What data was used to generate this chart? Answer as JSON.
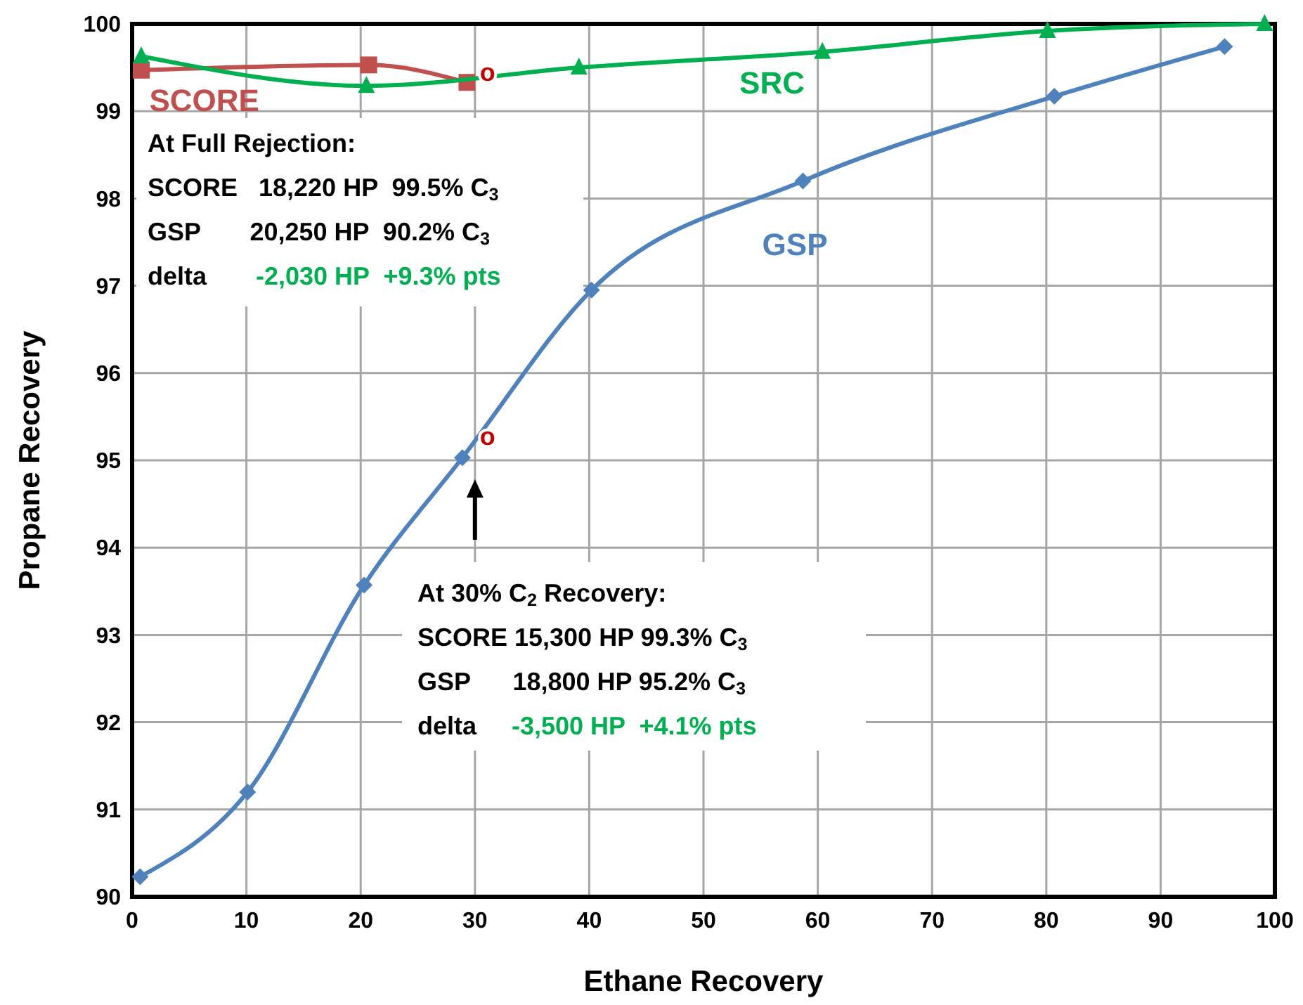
{
  "chart_data": {
    "type": "line",
    "xlabel": "Ethane Recovery",
    "ylabel": "Propane Recovery",
    "xlim": [
      0,
      100
    ],
    "xticks": [
      0,
      10,
      20,
      30,
      40,
      50,
      60,
      70,
      80,
      90,
      100
    ],
    "ylim": [
      90,
      100
    ],
    "yticks": [
      90,
      91,
      92,
      93,
      94,
      95,
      96,
      97,
      98,
      99,
      100
    ],
    "grid": true,
    "line_style": "solid",
    "series": [
      {
        "name": "SCORE",
        "color": "#c0504d",
        "marker": "square",
        "x": [
          0.8,
          20.7,
          29.3
        ],
        "values": [
          99.47,
          99.53,
          99.33
        ]
      },
      {
        "name": "SRC",
        "color": "#00b050",
        "marker": "triangle",
        "x": [
          0.8,
          20.5,
          39.1,
          60.4,
          80.1,
          99.1
        ],
        "values": [
          99.63,
          99.29,
          99.5,
          99.68,
          99.92,
          100
        ]
      },
      {
        "name": "GSP",
        "color": "#4f81bd",
        "marker": "diamond",
        "x": [
          0.7,
          10.1,
          20.3,
          28.9,
          40.2,
          58.7,
          80.7,
          95.6
        ],
        "values": [
          90.23,
          91.2,
          93.57,
          95.03,
          96.95,
          98.2,
          99.17,
          99.74
        ]
      }
    ],
    "annotations": [
      "At Full Rejection:",
      "SCORE   18,220 HP  99.5% C$_{3}$",
      "GSP       20,250 HP  90.2% C$_{3}$",
      "delta       -2,030 HP  +9.3% pts",
      "At 30% C$_{2}$ Recovery:",
      "SCORE 15,300 HP 99.3% C$_{3}$",
      "GSP      18,800 HP 95.2% C$_{3}$",
      "delta     -3,500 HP  +4.1% pts",
      {
        "text": "o",
        "x": 30,
        "y": 99.37
      },
      {
        "text": "o",
        "x": 30,
        "y": 95.2
      }
    ]
  }
}
